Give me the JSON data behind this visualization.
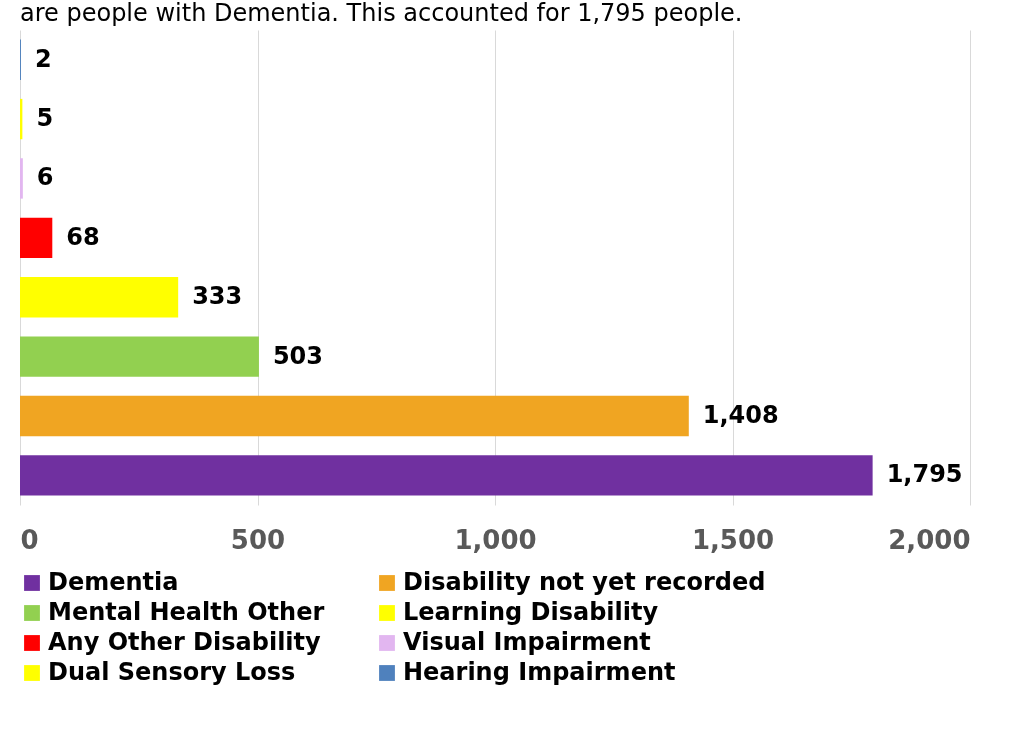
{
  "chart_data": {
    "type": "bar",
    "orientation": "horizontal",
    "title": "are people with Dementia. This accounted for 1,795 people.",
    "categories": [
      null,
      null,
      null,
      null,
      null,
      null,
      null,
      null
    ],
    "series": [
      {
        "name": "Dementia",
        "color": "#7030a0",
        "values": [
          null,
          null,
          null,
          null,
          null,
          null,
          null,
          1795
        ],
        "value_labels": [
          null,
          null,
          null,
          null,
          null,
          null,
          null,
          "1,795"
        ]
      },
      {
        "name": "Disability not yet recorded",
        "color": "#f0a522",
        "values": [
          null,
          null,
          null,
          null,
          null,
          null,
          1408,
          null
        ],
        "value_labels": [
          null,
          null,
          null,
          null,
          null,
          null,
          "1,408",
          null
        ]
      },
      {
        "name": "Mental Health Other",
        "color": "#92d050",
        "values": [
          null,
          null,
          null,
          null,
          null,
          503,
          null,
          null
        ],
        "value_labels": [
          null,
          null,
          null,
          null,
          null,
          "503",
          null,
          null
        ]
      },
      {
        "name": "Learning Disability",
        "color": "#ffff00",
        "values": [
          null,
          null,
          null,
          null,
          333,
          null,
          null,
          null
        ],
        "value_labels": [
          null,
          null,
          null,
          null,
          "333",
          null,
          null,
          null
        ]
      },
      {
        "name": "Any Other Disability",
        "color": "#ff0000",
        "values": [
          null,
          null,
          null,
          68,
          null,
          null,
          null,
          null
        ],
        "value_labels": [
          null,
          null,
          null,
          "68",
          null,
          null,
          null,
          null
        ]
      },
      {
        "name": "Visual Impairment",
        "color": "#e2b6f0",
        "values": [
          null,
          null,
          6,
          null,
          null,
          null,
          null,
          null
        ],
        "value_labels": [
          null,
          null,
          "6",
          null,
          null,
          null,
          null,
          null
        ]
      },
      {
        "name": "Dual Sensory Loss",
        "color": "#ffff00",
        "values": [
          null,
          5,
          null,
          null,
          null,
          null,
          null,
          null
        ],
        "value_labels": [
          null,
          "5",
          null,
          null,
          null,
          null,
          null,
          null
        ]
      },
      {
        "name": "Hearing Impairment",
        "color": "#4f81bd",
        "values": [
          2,
          null,
          null,
          null,
          null,
          null,
          null,
          null
        ],
        "value_labels": [
          "2",
          null,
          null,
          null,
          null,
          null,
          null,
          null
        ]
      }
    ],
    "xlim": [
      0,
      2000
    ],
    "xticks": [
      0,
      {
        "value": 500,
        "label": "500"
      },
      {
        "value": 1000,
        "label": "1,000"
      },
      {
        "value": 1500,
        "label": "1,500"
      },
      {
        "value": 2000,
        "label": "2,000"
      }
    ],
    "grid": "x",
    "legend": "bottom"
  }
}
